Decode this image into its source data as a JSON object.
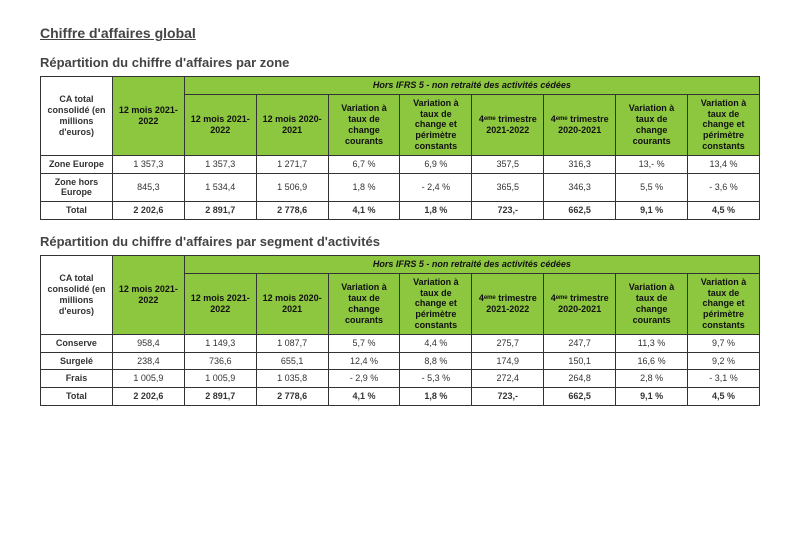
{
  "mainTitle": "Chiffre d'affaires global",
  "table1": {
    "subtitle": "Répartition du chiffre d'affaires par zone",
    "banner": "Hors IFRS 5 - non retraité des activités cédées",
    "headers": {
      "h1": "CA total consolidé (en millions d'euros)",
      "h2": "12 mois 2021-2022",
      "h3": "12 mois 2021-2022",
      "h4": "12 mois 2020-2021",
      "h5": "Variation à taux de change courants",
      "h6": "Variation à taux de change et périmètre constants",
      "h7": "4ᵉᵐᵉ trimestre 2021-2022",
      "h8": "4ᵉᵐᵉ trimestre 2020-2021",
      "h9": "Variation à taux de change courants",
      "h10": "Variation à taux de change et périmètre constants"
    },
    "rows": [
      {
        "label": "Zone Europe",
        "c1": "1 357,3",
        "c2": "1 357,3",
        "c3": "1 271,7",
        "c4": "6,7 %",
        "c5": "6,9 %",
        "c6": "357,5",
        "c7": "316,3",
        "c8": "13,- %",
        "c9": "13,4 %"
      },
      {
        "label": "Zone hors Europe",
        "c1": "845,3",
        "c2": "1 534,4",
        "c3": "1 506,9",
        "c4": "1,8 %",
        "c5": "- 2,4 %",
        "c6": "365,5",
        "c7": "346,3",
        "c8": "5,5 %",
        "c9": "- 3,6 %"
      },
      {
        "label": "Total",
        "c1": "2 202,6",
        "c2": "2 891,7",
        "c3": "2 778,6",
        "c4": "4,1 %",
        "c5": "1,8 %",
        "c6": "723,-",
        "c7": "662,5",
        "c8": "9,1 %",
        "c9": "4,5 %",
        "total": true
      }
    ]
  },
  "table2": {
    "subtitle": "Répartition du chiffre d'affaires par segment d'activités",
    "banner": "Hors IFRS 5 - non retraité des activités cédées",
    "headers": {
      "h1": "CA total consolidé (en millions d'euros)",
      "h2": "12 mois 2021-2022",
      "h3": "12 mois 2021-2022",
      "h4": "12 mois 2020-2021",
      "h5": "Variation à taux de change courants",
      "h6": "Variation à taux de change et périmètre constants",
      "h7": "4ᵉᵐᵉ trimestre 2021-2022",
      "h8": "4ᵉᵐᵉ trimestre 2020-2021",
      "h9": "Variation à taux de change courants",
      "h10": "Variation à taux de change et périmètre constants"
    },
    "rows": [
      {
        "label": "Conserve",
        "c1": "958,4",
        "c2": "1 149,3",
        "c3": "1 087,7",
        "c4": "5,7 %",
        "c5": "4,4 %",
        "c6": "275,7",
        "c7": "247,7",
        "c8": "11,3 %",
        "c9": "9,7 %"
      },
      {
        "label": "Surgelé",
        "c1": "238,4",
        "c2": "736,6",
        "c3": "655,1",
        "c4": "12,4 %",
        "c5": "8,8 %",
        "c6": "174,9",
        "c7": "150,1",
        "c8": "16,6 %",
        "c9": "9,2 %"
      },
      {
        "label": "Frais",
        "c1": "1 005,9",
        "c2": "1 005,9",
        "c3": "1 035,8",
        "c4": "- 2,9 %",
        "c5": "- 5,3 %",
        "c6": "272,4",
        "c7": "264,8",
        "c8": "2,8 %",
        "c9": "- 3,1 %"
      },
      {
        "label": "Total",
        "c1": "2 202,6",
        "c2": "2 891,7",
        "c3": "2 778,6",
        "c4": "4,1 %",
        "c5": "1,8 %",
        "c6": "723,-",
        "c7": "662,5",
        "c8": "9,1 %",
        "c9": "4,5 %",
        "total": true
      }
    ]
  }
}
